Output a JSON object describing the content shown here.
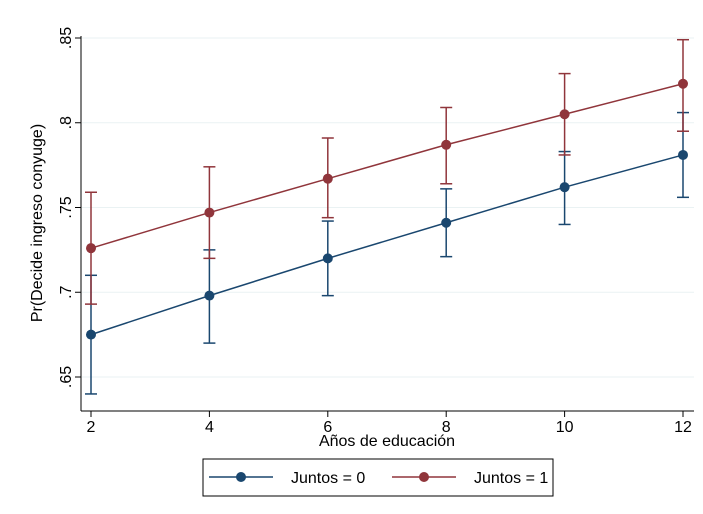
{
  "chart_data": {
    "type": "line",
    "xlabel": "Años de educación",
    "ylabel": "Pr(Decide ingreso conyuge)",
    "x": [
      2,
      4,
      6,
      8,
      10,
      12
    ],
    "xlim": [
      2,
      12
    ],
    "ylim": [
      0.65,
      0.85
    ],
    "y_ticks": [
      ".65",
      ".7",
      ".75",
      ".8",
      ".85"
    ],
    "x_ticks": [
      "2",
      "4",
      "6",
      "8",
      "10",
      "12"
    ],
    "grid": true,
    "legend_position": "bottom",
    "series": [
      {
        "name": "Juntos = 0",
        "color": "#1a476f",
        "values": [
          0.675,
          0.698,
          0.72,
          0.741,
          0.762,
          0.781
        ],
        "ci_low": [
          0.64,
          0.67,
          0.698,
          0.721,
          0.74,
          0.756
        ],
        "ci_high": [
          0.71,
          0.725,
          0.742,
          0.761,
          0.783,
          0.806
        ]
      },
      {
        "name": "Juntos = 1",
        "color": "#90353b",
        "values": [
          0.726,
          0.747,
          0.767,
          0.787,
          0.805,
          0.823
        ],
        "ci_low": [
          0.693,
          0.72,
          0.744,
          0.764,
          0.781,
          0.795
        ],
        "ci_high": [
          0.759,
          0.774,
          0.791,
          0.809,
          0.829,
          0.849
        ]
      }
    ]
  }
}
